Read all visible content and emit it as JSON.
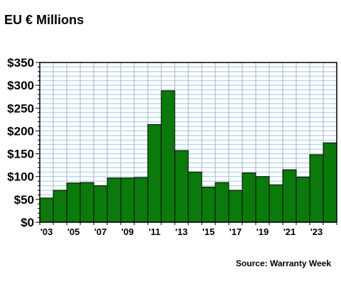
{
  "chart_data": {
    "type": "bar",
    "title": "EU € Millions",
    "source": "Source: Warranty Week",
    "colors": {
      "bar": "#0a7a0a",
      "gridline": "#9ec9e8",
      "vgrid": "#b0b0b0",
      "axis": "#000000"
    },
    "categories": [
      "2003",
      "2004",
      "2005",
      "2006",
      "2007",
      "2008",
      "2009",
      "2010",
      "2011",
      "2012",
      "2013",
      "2014",
      "2015",
      "2016",
      "2017",
      "2018",
      "2019",
      "2020",
      "2021",
      "2022",
      "2023",
      "2024"
    ],
    "values": [
      53,
      70,
      86,
      87,
      80,
      97,
      97,
      98,
      214,
      288,
      157,
      110,
      77,
      87,
      70,
      108,
      100,
      82,
      115,
      99,
      148,
      174
    ],
    "xtick_labels": [
      "'03",
      "",
      "'05",
      "",
      "'07",
      "",
      "'09",
      "",
      "'11",
      "",
      "'13",
      "",
      "'15",
      "",
      "'17",
      "",
      "'19",
      "",
      "'21",
      "",
      "'23",
      ""
    ],
    "yticks": [
      0,
      50,
      100,
      150,
      200,
      250,
      300,
      350
    ],
    "ytick_labels": [
      "$0",
      "$50",
      "$100",
      "$150",
      "$200",
      "$250",
      "$300",
      "$350"
    ],
    "ylim": [
      0,
      350
    ],
    "xlabel": "",
    "ylabel": "",
    "grid": true
  }
}
